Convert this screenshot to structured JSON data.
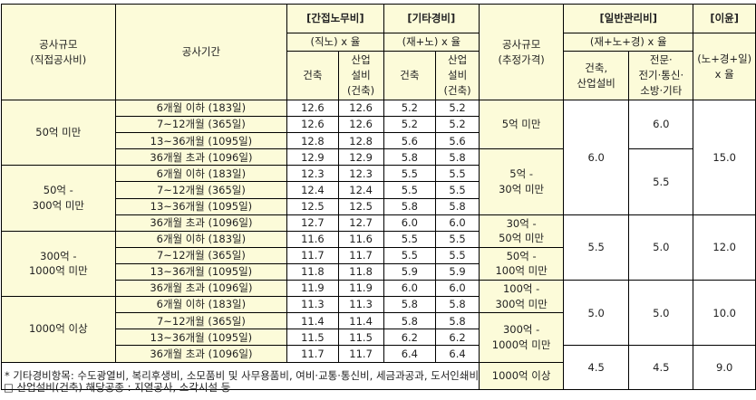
{
  "header": {
    "scale_direct": [
      "공사규모",
      "(직접공사비)"
    ],
    "period": "공사기간",
    "indirect_labor": "[간접노무비]",
    "indirect_labor_rate": "(직노) x 율",
    "other_expense": "[기타경비]",
    "other_expense_rate": "(재+노) x 율",
    "scale_est": [
      "공사규모",
      "(추정가격)"
    ],
    "general_admin": "[일반관리비]",
    "general_admin_rate": "(재+노+경) x 율",
    "profit": "[이윤]",
    "profit_rate": [
      "(노+경+일)",
      "x 율"
    ],
    "col_building": "건축",
    "col_industrial": [
      "산업",
      "설비",
      "(건축)"
    ],
    "ga_col1": [
      "건축,",
      "산업설비"
    ],
    "ga_col2": [
      "전문·",
      "전기·통신·",
      "소방·기타"
    ]
  },
  "groups": [
    {
      "label": [
        "50억 미만"
      ],
      "rows": [
        {
          "period": "6개월 이하 (183일)",
          "a": "12.6",
          "b": "12.6",
          "c": "5.2",
          "d": "5.2"
        },
        {
          "period": "7~12개월 (365일)",
          "a": "12.6",
          "b": "12.6",
          "c": "5.2",
          "d": "5.2"
        },
        {
          "period": "13~36개월 (1095일)",
          "a": "12.8",
          "b": "12.8",
          "c": "5.6",
          "d": "5.6"
        },
        {
          "period": "36개월 초과 (1096일)",
          "a": "12.9",
          "b": "12.9",
          "c": "5.8",
          "d": "5.8"
        }
      ]
    },
    {
      "label": [
        "50억 -",
        "300억 미만"
      ],
      "rows": [
        {
          "period": "6개월 이하 (183일)",
          "a": "12.3",
          "b": "12.3",
          "c": "5.5",
          "d": "5.5"
        },
        {
          "period": "7~12개월 (365일)",
          "a": "12.4",
          "b": "12.4",
          "c": "5.5",
          "d": "5.5"
        },
        {
          "period": "13~36개월 (1095일)",
          "a": "12.5",
          "b": "12.5",
          "c": "5.8",
          "d": "5.8"
        },
        {
          "period": "36개월 초과 (1096일)",
          "a": "12.7",
          "b": "12.7",
          "c": "6.0",
          "d": "6.0"
        }
      ]
    },
    {
      "label": [
        "300억 -",
        "1000억 미만"
      ],
      "rows": [
        {
          "period": "6개월 이하 (183일)",
          "a": "11.6",
          "b": "11.6",
          "c": "5.5",
          "d": "5.5"
        },
        {
          "period": "7~12개월 (365일)",
          "a": "11.7",
          "b": "11.7",
          "c": "5.5",
          "d": "5.5"
        },
        {
          "period": "13~36개월 (1095일)",
          "a": "11.8",
          "b": "11.8",
          "c": "5.9",
          "d": "5.9"
        },
        {
          "period": "36개월 초과 (1096일)",
          "a": "11.9",
          "b": "11.9",
          "c": "6.0",
          "d": "6.0"
        }
      ]
    },
    {
      "label": [
        "1000억 이상"
      ],
      "rows": [
        {
          "period": "6개월 이하 (183일)",
          "a": "11.3",
          "b": "11.3",
          "c": "5.8",
          "d": "5.8"
        },
        {
          "period": "7~12개월 (365일)",
          "a": "11.4",
          "b": "11.4",
          "c": "5.8",
          "d": "5.8"
        },
        {
          "period": "13~36개월 (1095일)",
          "a": "11.5",
          "b": "11.5",
          "c": "6.2",
          "d": "6.2"
        },
        {
          "period": "36개월 초과 (1096일)",
          "a": "11.7",
          "b": "11.7",
          "c": "6.4",
          "d": "6.4"
        }
      ]
    }
  ],
  "right": {
    "scale": [
      [
        "5억 미만"
      ],
      [
        "5억 -",
        "30억 미만"
      ],
      [
        "30억 -",
        "50억 미만"
      ],
      [
        "50억 -",
        "100억 미만"
      ],
      [
        "100억 -",
        "300억 미만"
      ],
      [
        "300억 -",
        "1000억 미만"
      ],
      [
        "1000억 이상"
      ]
    ],
    "ga_building": [
      "6.0",
      "5.5",
      "5.0",
      "4.5"
    ],
    "ga_other": [
      "6.0",
      "5.5",
      "5.0",
      "4.5"
    ],
    "profit": [
      "15.0",
      "12.0",
      "10.0",
      "9.0"
    ]
  },
  "notes": {
    "note1": "* 기타경비항목: 수도광열비, 복리후생비, 소모품비 및 사무용품비, 여비·교통·통신비, 세금과공과, 도서인쇄비",
    "note2": "□ 산업설비(건축) 해당공종 : 지열공사, 소각시설 등"
  }
}
